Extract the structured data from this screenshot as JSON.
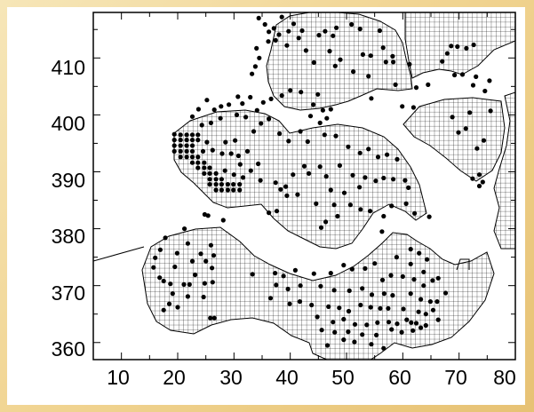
{
  "map": {
    "y_ticks": [
      "410",
      "400",
      "390",
      "380",
      "370",
      "360"
    ],
    "x_ticks": [
      "10",
      "20",
      "30",
      "40",
      "50",
      "60",
      "70",
      "80"
    ]
  },
  "chart_data": {
    "type": "scatter",
    "xlim": [
      5,
      80
    ],
    "ylim": [
      357,
      418
    ],
    "grid": false,
    "x_ticks": [
      10,
      20,
      30,
      40,
      50,
      60,
      70,
      80
    ],
    "y_ticks": [
      360,
      370,
      380,
      390,
      400,
      410
    ],
    "point_color": "#000000",
    "land_hatch": "grid",
    "points": [
      [
        34.4,
        417.0
      ],
      [
        35.5,
        415.9
      ],
      [
        37.1,
        415.2
      ],
      [
        38.5,
        417.2
      ],
      [
        40.6,
        416.0
      ],
      [
        36.2,
        414.6
      ],
      [
        38.0,
        414.1
      ],
      [
        39.7,
        414.7
      ],
      [
        41.5,
        413.5
      ],
      [
        37.4,
        413.1
      ],
      [
        36.1,
        412.9
      ],
      [
        39.4,
        412.2
      ],
      [
        34.0,
        411.7
      ],
      [
        34.5,
        410.0
      ],
      [
        33.8,
        408.5
      ],
      [
        33.2,
        407.2
      ],
      [
        42.1,
        414.8
      ],
      [
        45.1,
        414.0
      ],
      [
        42.8,
        411.3
      ],
      [
        44.2,
        409.2
      ],
      [
        46.2,
        414.7
      ],
      [
        47.6,
        413.9
      ],
      [
        48.2,
        415.3
      ],
      [
        50.9,
        415.9
      ],
      [
        52.4,
        415.1
      ],
      [
        55.9,
        414.8
      ],
      [
        47.0,
        411.2
      ],
      [
        52.9,
        410.6
      ],
      [
        54.3,
        410.4
      ],
      [
        48.9,
        409.7
      ],
      [
        48.0,
        408.6
      ],
      [
        51.2,
        407.6
      ],
      [
        53.9,
        406.8
      ],
      [
        54.4,
        402.9
      ],
      [
        56.5,
        411.8
      ],
      [
        58.2,
        410.3
      ],
      [
        57.0,
        409.3
      ],
      [
        68.6,
        412.1
      ],
      [
        69.7,
        412.0
      ],
      [
        71.3,
        411.7
      ],
      [
        72.6,
        412.3
      ],
      [
        67.9,
        410.8
      ],
      [
        67.0,
        409.4
      ],
      [
        40.0,
        404.3
      ],
      [
        41.9,
        404.0
      ],
      [
        44.9,
        403.6
      ],
      [
        44.1,
        401.8
      ],
      [
        45.8,
        400.8
      ],
      [
        47.2,
        401.0
      ],
      [
        43.6,
        399.8
      ],
      [
        45.3,
        398.6
      ],
      [
        46.5,
        399.4
      ],
      [
        38.5,
        403.4
      ],
      [
        36.6,
        402.8
      ],
      [
        35.2,
        402.2
      ],
      [
        32.9,
        403.1
      ],
      [
        30.7,
        403.2
      ],
      [
        31.5,
        402.0
      ],
      [
        29.1,
        401.8
      ],
      [
        27.7,
        401.5
      ],
      [
        26.5,
        400.9
      ],
      [
        25.2,
        402.6
      ],
      [
        23.7,
        401.0
      ],
      [
        22.6,
        399.7
      ],
      [
        24.3,
        398.2
      ],
      [
        25.9,
        398.6
      ],
      [
        27.6,
        399.4
      ],
      [
        30.5,
        400.0
      ],
      [
        32.1,
        399.6
      ],
      [
        34.1,
        400.8
      ],
      [
        36.2,
        399.3
      ],
      [
        34.8,
        398.5
      ],
      [
        33.5,
        397.1
      ],
      [
        38.1,
        396.7
      ],
      [
        39.7,
        395.4
      ],
      [
        41.8,
        397.1
      ],
      [
        43.1,
        395.3
      ],
      [
        46.1,
        396.5
      ],
      [
        48.1,
        396.3
      ],
      [
        50.3,
        394.4
      ],
      [
        52.4,
        393.3
      ],
      [
        53.9,
        394.0
      ],
      [
        55.6,
        392.6
      ],
      [
        57.2,
        393.0
      ],
      [
        59.0,
        392.2
      ],
      [
        48.8,
        391.1
      ],
      [
        45.3,
        390.9
      ],
      [
        42.5,
        391.0
      ],
      [
        40.5,
        389.5
      ],
      [
        43.3,
        389.7
      ],
      [
        46.4,
        389.2
      ],
      [
        51.1,
        389.4
      ],
      [
        53.3,
        389.0
      ],
      [
        55.2,
        388.4
      ],
      [
        56.6,
        388.9
      ],
      [
        58.3,
        388.7
      ],
      [
        60.4,
        388.5
      ],
      [
        61.0,
        387.2
      ],
      [
        52.3,
        387.3
      ],
      [
        49.6,
        386.3
      ],
      [
        47.2,
        386.8
      ],
      [
        41.3,
        386.0
      ],
      [
        44.6,
        384.4
      ],
      [
        47.8,
        384.2
      ],
      [
        50.7,
        384.2
      ],
      [
        52.5,
        383.4
      ],
      [
        54.2,
        383.1
      ],
      [
        56.6,
        382.2
      ],
      [
        58.0,
        384.0
      ],
      [
        48.4,
        382.2
      ],
      [
        46.3,
        381.2
      ],
      [
        45.5,
        380.2
      ],
      [
        56.3,
        379.5
      ],
      [
        60.6,
        384.4
      ],
      [
        62.1,
        382.7
      ],
      [
        64.7,
        382.1
      ],
      [
        19.4,
        396.6
      ],
      [
        20.5,
        396.5
      ],
      [
        21.6,
        396.5
      ],
      [
        22.6,
        396.5
      ],
      [
        23.6,
        396.5
      ],
      [
        19.4,
        395.6
      ],
      [
        20.5,
        395.6
      ],
      [
        21.6,
        395.6
      ],
      [
        22.6,
        395.6
      ],
      [
        23.6,
        395.6
      ],
      [
        19.4,
        394.6
      ],
      [
        20.5,
        394.6
      ],
      [
        21.6,
        394.6
      ],
      [
        22.6,
        394.6
      ],
      [
        19.4,
        393.6
      ],
      [
        20.5,
        393.6
      ],
      [
        21.6,
        393.6
      ],
      [
        22.6,
        393.6
      ],
      [
        20.5,
        392.6
      ],
      [
        21.6,
        392.6
      ],
      [
        22.6,
        392.6
      ],
      [
        23.6,
        392.6
      ],
      [
        22.6,
        391.6
      ],
      [
        23.6,
        391.6
      ],
      [
        24.7,
        391.6
      ],
      [
        23.6,
        390.7
      ],
      [
        24.7,
        390.7
      ],
      [
        25.7,
        390.7
      ],
      [
        24.7,
        389.7
      ],
      [
        25.7,
        389.7
      ],
      [
        26.8,
        389.7
      ],
      [
        25.7,
        388.7
      ],
      [
        26.8,
        388.7
      ],
      [
        27.8,
        388.7
      ],
      [
        25.7,
        387.8
      ],
      [
        26.8,
        387.8
      ],
      [
        27.8,
        387.8
      ],
      [
        28.9,
        387.8
      ],
      [
        29.9,
        387.8
      ],
      [
        31.0,
        387.8
      ],
      [
        26.8,
        386.8
      ],
      [
        27.8,
        386.8
      ],
      [
        28.9,
        386.8
      ],
      [
        29.9,
        386.8
      ],
      [
        31.0,
        386.8
      ],
      [
        24.5,
        393.6
      ],
      [
        26.2,
        393.8
      ],
      [
        27.9,
        393.2
      ],
      [
        25.2,
        395.2
      ],
      [
        28.5,
        395.2
      ],
      [
        30.2,
        395.5
      ],
      [
        29.5,
        393.2
      ],
      [
        30.8,
        392.8
      ],
      [
        32.4,
        393.6
      ],
      [
        31.1,
        391.3
      ],
      [
        34.3,
        391.4
      ],
      [
        30.0,
        389.5
      ],
      [
        33.0,
        390.2
      ],
      [
        31.6,
        389.0
      ],
      [
        28.4,
        390.2
      ],
      [
        34.7,
        388.5
      ],
      [
        37.4,
        388.1
      ],
      [
        39.2,
        387.4
      ],
      [
        38.3,
        386.9
      ],
      [
        39.4,
        385.8
      ],
      [
        37.6,
        383.1
      ],
      [
        36.2,
        382.8
      ],
      [
        58.3,
        409.3
      ],
      [
        61.2,
        408.9
      ],
      [
        58.7,
        405.3
      ],
      [
        62.4,
        404.8
      ],
      [
        64.5,
        405.3
      ],
      [
        69.2,
        407.0
      ],
      [
        70.6,
        407.1
      ],
      [
        73.0,
        406.7
      ],
      [
        75.4,
        406.0
      ],
      [
        72.5,
        405.2
      ],
      [
        74.6,
        404.2
      ],
      [
        75.6,
        400.7
      ],
      [
        71.9,
        400.4
      ],
      [
        68.8,
        399.6
      ],
      [
        71.2,
        397.6
      ],
      [
        69.9,
        396.9
      ],
      [
        74.4,
        395.5
      ],
      [
        73.2,
        394.1
      ],
      [
        73.6,
        389.5
      ],
      [
        74.2,
        388.2
      ],
      [
        72.4,
        388.8
      ],
      [
        73.6,
        387.5
      ],
      [
        59.9,
        401.5
      ],
      [
        61.9,
        401.3
      ],
      [
        24.8,
        382.5
      ],
      [
        25.4,
        382.3
      ],
      [
        28.1,
        381.5
      ],
      [
        21.2,
        380.0
      ],
      [
        17.8,
        378.4
      ],
      [
        16.9,
        376.3
      ],
      [
        21.8,
        377.4
      ],
      [
        25.9,
        377.1
      ],
      [
        19.9,
        375.7
      ],
      [
        24.1,
        375.6
      ],
      [
        26.4,
        375.3
      ],
      [
        16.0,
        374.9
      ],
      [
        15.7,
        373.2
      ],
      [
        19.5,
        373.3
      ],
      [
        22.6,
        374.3
      ],
      [
        25.0,
        374.3
      ],
      [
        26.1,
        373.1
      ],
      [
        23.1,
        371.9
      ],
      [
        16.8,
        371.4
      ],
      [
        17.5,
        370.8
      ],
      [
        18.7,
        370.3
      ],
      [
        21.1,
        370.2
      ],
      [
        22.1,
        370.2
      ],
      [
        24.8,
        370.4
      ],
      [
        26.2,
        370.6
      ],
      [
        19.1,
        368.6
      ],
      [
        21.8,
        368.1
      ],
      [
        24.6,
        368.0
      ],
      [
        18.5,
        366.8
      ],
      [
        20.0,
        366.2
      ],
      [
        17.5,
        365.7
      ],
      [
        25.8,
        364.3
      ],
      [
        26.5,
        364.3
      ],
      [
        33.3,
        372.0
      ],
      [
        37.3,
        372.2
      ],
      [
        38.8,
        371.7
      ],
      [
        40.9,
        372.7
      ],
      [
        44.2,
        372.1
      ],
      [
        47.2,
        372.2
      ],
      [
        49.5,
        373.6
      ],
      [
        51.0,
        372.9
      ],
      [
        53.3,
        373.0
      ],
      [
        55.0,
        373.9
      ],
      [
        58.9,
        375.0
      ],
      [
        61.4,
        376.4
      ],
      [
        62.9,
        375.7
      ],
      [
        64.3,
        374.6
      ],
      [
        61.4,
        373.8
      ],
      [
        63.7,
        372.4
      ],
      [
        57.9,
        371.8
      ],
      [
        56.4,
        371.0
      ],
      [
        60.0,
        371.6
      ],
      [
        62.0,
        371.1
      ],
      [
        63.7,
        370.0
      ],
      [
        65.3,
        370.9
      ],
      [
        66.3,
        371.3
      ],
      [
        67.6,
        368.7
      ],
      [
        37.5,
        370.1
      ],
      [
        39.6,
        369.4
      ],
      [
        41.8,
        370.0
      ],
      [
        45.4,
        369.9
      ],
      [
        47.8,
        369.2
      ],
      [
        50.5,
        369.1
      ],
      [
        52.8,
        369.5
      ],
      [
        54.5,
        368.4
      ],
      [
        56.7,
        368.6
      ],
      [
        58.2,
        368.3
      ],
      [
        61.4,
        368.6
      ],
      [
        63.2,
        367.6
      ],
      [
        64.9,
        367.2
      ],
      [
        66.1,
        367.2
      ],
      [
        36.5,
        367.8
      ],
      [
        39.9,
        366.8
      ],
      [
        41.7,
        367.2
      ],
      [
        43.8,
        366.6
      ],
      [
        46.8,
        366.3
      ],
      [
        48.7,
        366.1
      ],
      [
        50.4,
        365.5
      ],
      [
        52.5,
        366.6
      ],
      [
        54.3,
        366.2
      ],
      [
        56.0,
        366.0
      ],
      [
        57.4,
        366.0
      ],
      [
        60.1,
        365.9
      ],
      [
        62.8,
        365.4
      ],
      [
        64.1,
        365.0
      ],
      [
        65.4,
        365.7
      ],
      [
        66.3,
        364.0
      ],
      [
        44.8,
        364.5
      ],
      [
        47.6,
        363.6
      ],
      [
        49.5,
        364.1
      ],
      [
        51.5,
        363.2
      ],
      [
        53.6,
        363.1
      ],
      [
        55.5,
        363.5
      ],
      [
        57.5,
        363.6
      ],
      [
        59.0,
        363.3
      ],
      [
        60.7,
        364.0
      ],
      [
        61.5,
        363.5
      ],
      [
        62.4,
        363.4
      ],
      [
        64.1,
        363.0
      ],
      [
        45.6,
        362.2
      ],
      [
        47.9,
        361.8
      ],
      [
        50.3,
        361.9
      ],
      [
        52.8,
        361.4
      ],
      [
        55.3,
        361.3
      ],
      [
        58.0,
        362.3
      ],
      [
        59.8,
        361.8
      ],
      [
        61.8,
        362.1
      ],
      [
        63.2,
        362.6
      ],
      [
        49.5,
        360.5
      ],
      [
        51.4,
        360.1
      ],
      [
        54.4,
        359.7
      ],
      [
        56.6,
        359.0
      ],
      [
        46.6,
        359.5
      ]
    ]
  }
}
